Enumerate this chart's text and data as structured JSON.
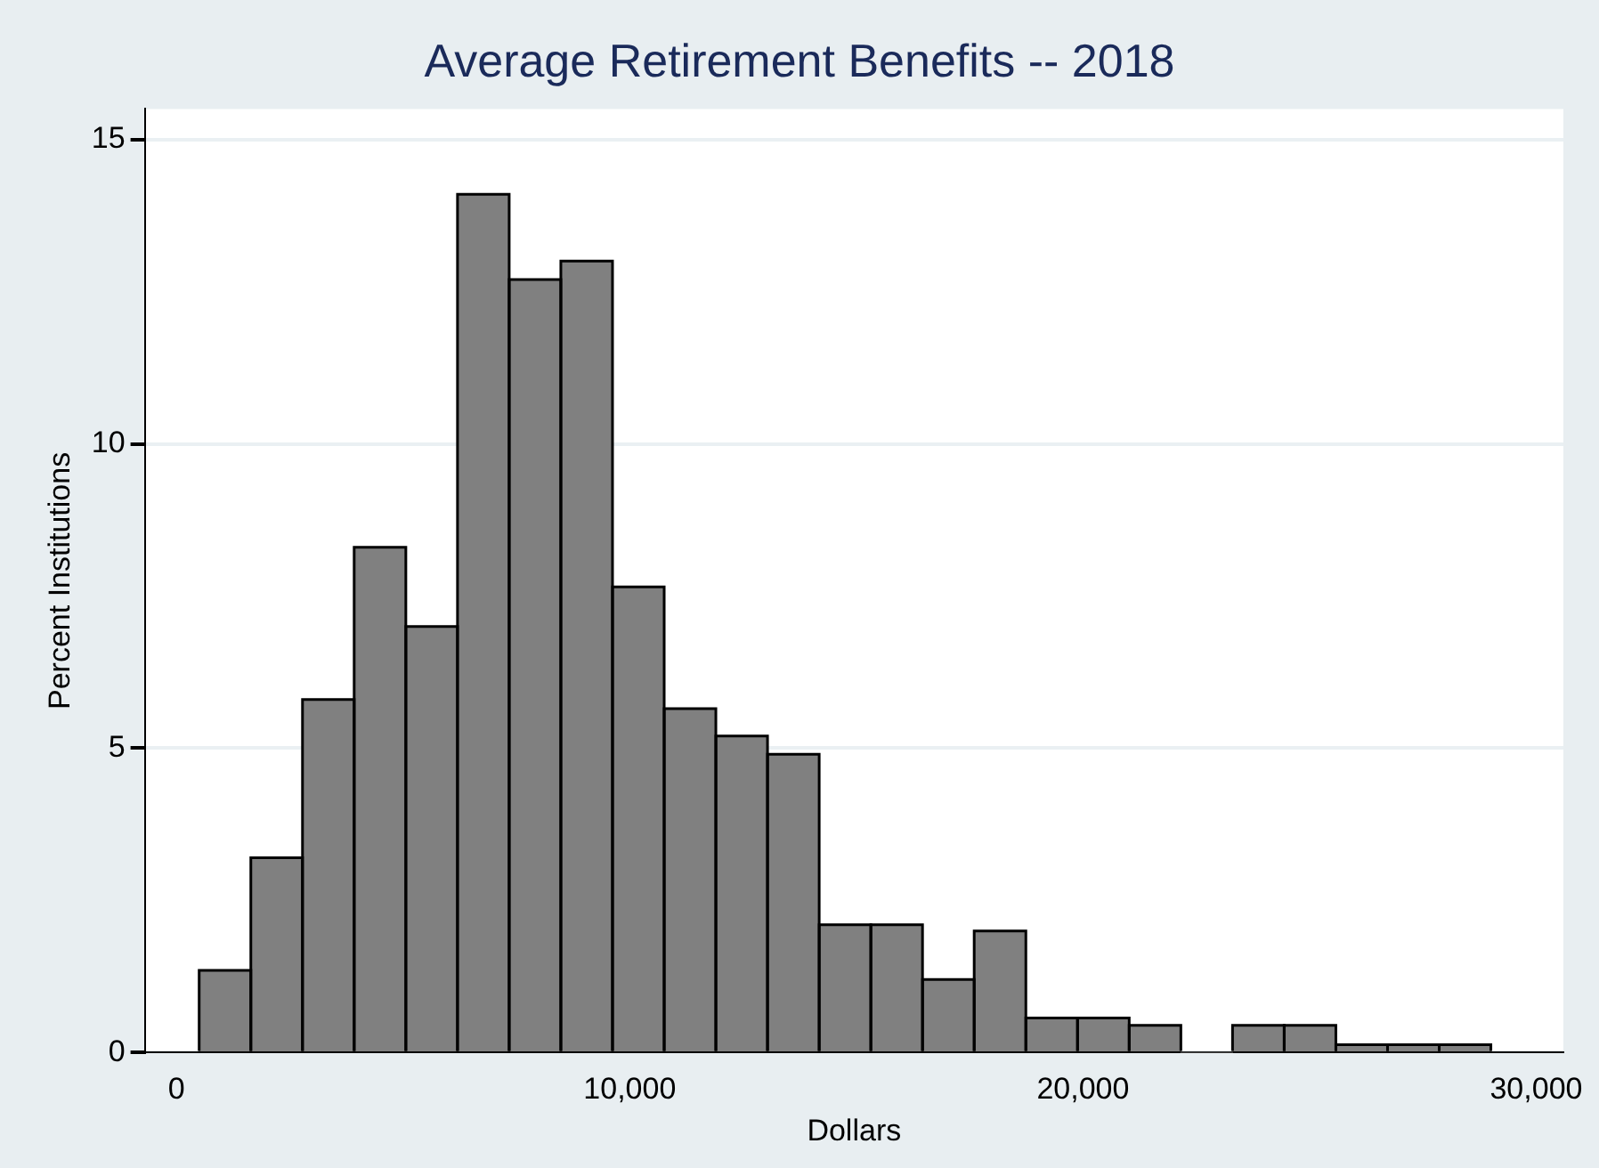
{
  "chart_data": {
    "type": "histogram",
    "title": "Average Retirement Benefits -- 2018",
    "xlabel": "Dollars",
    "ylabel": "Percent Institutions",
    "bins": [
      500,
      1640,
      2780,
      3920,
      5060,
      6200,
      7340,
      8480,
      9620,
      10760,
      11900,
      13040,
      14180,
      15320,
      16460,
      17600,
      18740,
      19880,
      21020,
      22160,
      23300,
      24440,
      25580,
      26720,
      27860,
      29000
    ],
    "values": [
      1.35,
      3.2,
      5.8,
      8.3,
      7.0,
      14.1,
      12.7,
      13.0,
      7.65,
      5.65,
      5.2,
      4.9,
      2.1,
      2.1,
      1.2,
      2.0,
      0.57,
      0.57,
      0.45,
      0,
      0.45,
      0.45,
      0.13,
      0.13,
      0.13
    ],
    "color": "#808080",
    "xlim": [
      -700,
      30600
    ],
    "xticks": [
      0,
      {
        "value": 10000,
        "label": "10,000"
      },
      {
        "value": 20000,
        "label": "20,000"
      },
      {
        "value": 30000,
        "label": "30,000"
      }
    ],
    "ylim": [
      0,
      15.5
    ],
    "yticks": [
      0,
      5,
      10,
      15
    ],
    "grid": "y",
    "legend": false
  }
}
